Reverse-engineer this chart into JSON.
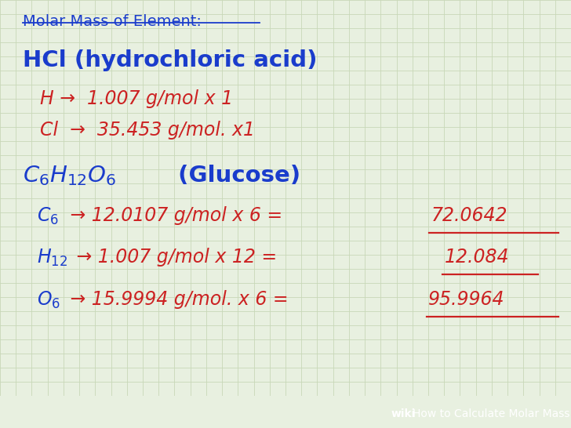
{
  "bg_color": "#e8f0e0",
  "grid_color": "#c8d8b8",
  "blue": "#1a3ccc",
  "red": "#cc2222",
  "footer_bg": "#8a9a5a",
  "footer_text": "How to Calculate Molar Mass",
  "footer_wiki": "wiki",
  "title": "Molar Mass of Element:",
  "hcl_label": "HCl (hydrochloric acid)",
  "h_line": "H →  1.007 g/mol x 1",
  "cl_line": "Cl  →  35.453 g/mol. x1",
  "c6_line": " → 12.0107 g/mol x 6 =",
  "c6_result": "72.0642",
  "h12_line": " → 1.007 g/mol x 12 = ",
  "h12_result": "12.084",
  "o6_line": " → 15.9994 g/mol. x 6 = ",
  "o6_result": "95.9964"
}
